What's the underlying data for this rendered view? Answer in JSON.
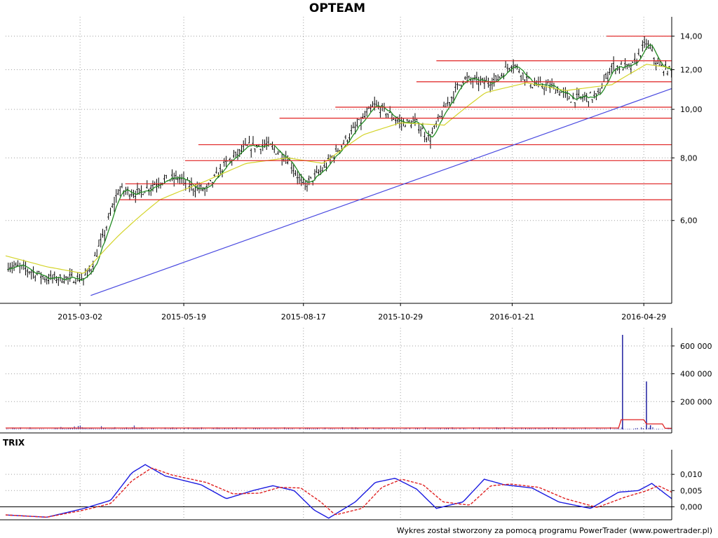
{
  "title": "OPTEAM",
  "trix_label": "TRIX",
  "credit": "Wykres został stworzony za pomocą programu PowerTrader (www.powertrader.pl)",
  "colors": {
    "candle": "#000000",
    "sma_short": "#228b22",
    "sma_long": "#d4d42a",
    "resistance": "#e02020",
    "trendline": "#4848e0",
    "volume_bar": "#2020a0",
    "volume_avg": "#e02020",
    "trix": "#1a1ae0",
    "trix_signal": "#e02020",
    "grid": "#a0a0a0"
  },
  "chart_data": [
    {
      "type": "line",
      "panel": "price",
      "y_scale": "log",
      "ylim": [
        4.1,
        15.3
      ],
      "x_range": [
        "2015-01-05",
        "2016-05-20"
      ],
      "x_tick_labels": [
        "2015-03-02",
        "2015-05-19",
        "2015-08-17",
        "2015-10-29",
        "2016-01-21",
        "2016-04-29"
      ],
      "y_tick_labels": [
        "6,00",
        "8,00",
        "10,00",
        "12,00",
        "14,00"
      ],
      "y_ticks": [
        6,
        8,
        10,
        12,
        14
      ],
      "grid": true,
      "series": [
        {
          "kind": "close",
          "x": [
            "2015-01-05",
            "2015-01-20",
            "2015-02-05",
            "2015-02-20",
            "2015-03-05",
            "2015-03-10",
            "2015-03-20",
            "2015-03-31",
            "2015-04-15",
            "2015-05-01",
            "2015-05-15",
            "2015-05-25",
            "2015-06-05",
            "2015-06-20",
            "2015-07-05",
            "2015-07-20",
            "2015-08-05",
            "2015-08-17",
            "2015-09-01",
            "2015-09-15",
            "2015-09-30",
            "2015-10-10",
            "2015-10-20",
            "2015-10-29",
            "2015-11-10",
            "2015-11-20",
            "2015-12-01",
            "2015-12-15",
            "2015-12-31",
            "2016-01-10",
            "2016-01-21",
            "2016-02-05",
            "2016-02-20",
            "2016-03-05",
            "2016-03-25",
            "2016-04-05",
            "2016-04-20",
            "2016-05-01",
            "2016-05-10",
            "2016-05-20"
          ],
          "y": [
            4.9,
            4.8,
            4.6,
            4.6,
            4.6,
            4.8,
            5.6,
            6.9,
            6.8,
            7.2,
            7.3,
            7.0,
            6.9,
            7.8,
            8.4,
            8.5,
            8.0,
            7.0,
            7.6,
            8.5,
            9.5,
            10.2,
            9.8,
            9.4,
            9.4,
            8.7,
            10.0,
            11.5,
            11.3,
            11.5,
            12.4,
            11.2,
            11.1,
            10.5,
            10.6,
            12.2,
            12.1,
            13.6,
            12.2,
            11.9
          ]
        },
        {
          "kind": "sma_long",
          "x": [
            "2015-01-05",
            "2015-02-05",
            "2015-03-05",
            "2015-03-31",
            "2015-05-01",
            "2015-06-05",
            "2015-07-05",
            "2015-08-05",
            "2015-09-01",
            "2015-10-01",
            "2015-10-29",
            "2015-12-01",
            "2016-01-01",
            "2016-02-01",
            "2016-03-01",
            "2016-04-05",
            "2016-05-01",
            "2016-05-20"
          ],
          "y": [
            5.1,
            4.85,
            4.7,
            5.6,
            6.6,
            7.2,
            7.8,
            8.0,
            7.8,
            8.9,
            9.4,
            9.3,
            10.8,
            11.3,
            10.9,
            11.2,
            12.3,
            12.1
          ]
        },
        {
          "kind": "resistance",
          "levels": [
            {
              "value": 6.6,
              "from": "2015-04-01"
            },
            {
              "value": 7.1,
              "from": "2015-04-05"
            },
            {
              "value": 7.9,
              "from": "2015-05-20"
            },
            {
              "value": 8.5,
              "from": "2015-05-30"
            },
            {
              "value": 9.6,
              "from": "2015-07-30"
            },
            {
              "value": 10.1,
              "from": "2015-09-10"
            },
            {
              "value": 11.35,
              "from": "2015-11-10"
            },
            {
              "value": 12.5,
              "from": "2015-11-25"
            },
            {
              "value": 14.0,
              "from": "2016-04-01"
            }
          ]
        },
        {
          "kind": "trendline",
          "x": [
            "2015-03-10",
            "2016-05-20"
          ],
          "y": [
            4.25,
            11.0
          ]
        }
      ]
    },
    {
      "type": "bar",
      "panel": "volume",
      "ylim": [
        0,
        690000
      ],
      "y_tick_labels": [
        "200 000",
        "400 000",
        "600 000"
      ],
      "y_ticks": [
        200000,
        400000,
        600000
      ],
      "grid": true,
      "spikes": [
        {
          "x": "2016-04-13",
          "value": 680000
        },
        {
          "x": "2016-05-01",
          "value": 345000
        },
        {
          "x": "2016-05-04",
          "value": 30000
        }
      ],
      "average": [
        {
          "x": "2015-01-05",
          "value": 10000
        },
        {
          "x": "2016-04-10",
          "value": 10000
        },
        {
          "x": "2016-04-12",
          "value": 70000
        },
        {
          "x": "2016-04-29",
          "value": 70000
        },
        {
          "x": "2016-05-01",
          "value": 40000
        },
        {
          "x": "2016-05-13",
          "value": 40000
        },
        {
          "x": "2016-05-15",
          "value": 8000
        },
        {
          "x": "2016-05-20",
          "value": 8000
        }
      ]
    },
    {
      "type": "line",
      "panel": "trix",
      "title": "TRIX",
      "ylim": [
        -0.004,
        0.0137
      ],
      "y_tick_labels": [
        "0,000",
        "0,005",
        "0,010"
      ],
      "y_ticks": [
        0,
        0.005,
        0.01
      ],
      "grid": true,
      "series": [
        {
          "kind": "trix",
          "x": [
            "2015-01-05",
            "2015-02-05",
            "2015-03-05",
            "2015-03-25",
            "2015-04-10",
            "2015-04-20",
            "2015-05-05",
            "2015-06-01",
            "2015-06-20",
            "2015-07-10",
            "2015-07-25",
            "2015-08-10",
            "2015-08-25",
            "2015-09-05",
            "2015-09-25",
            "2015-10-10",
            "2015-10-25",
            "2015-11-10",
            "2015-11-25",
            "2015-12-15",
            "2015-12-31",
            "2016-01-15",
            "2016-02-05",
            "2016-02-25",
            "2016-03-20",
            "2016-04-10",
            "2016-04-25",
            "2016-05-05",
            "2016-05-20"
          ],
          "y": [
            -0.0025,
            -0.0032,
            -0.0005,
            0.002,
            0.0105,
            0.013,
            0.0095,
            0.0068,
            0.0025,
            0.005,
            0.0065,
            0.005,
            -0.001,
            -0.0035,
            0.0015,
            0.0075,
            0.0088,
            0.0055,
            -0.0005,
            0.0015,
            0.0085,
            0.0068,
            0.0058,
            0.0015,
            -0.0005,
            0.0045,
            0.005,
            0.0072,
            0.0025
          ]
        },
        {
          "kind": "trix_signal",
          "x": [
            "2015-01-05",
            "2015-02-05",
            "2015-03-05",
            "2015-03-25",
            "2015-04-10",
            "2015-04-25",
            "2015-05-10",
            "2015-06-05",
            "2015-06-25",
            "2015-07-15",
            "2015-07-30",
            "2015-08-15",
            "2015-08-30",
            "2015-09-10",
            "2015-09-30",
            "2015-10-15",
            "2015-10-30",
            "2015-11-15",
            "2015-11-30",
            "2015-12-20",
            "2016-01-05",
            "2016-01-20",
            "2016-02-10",
            "2016-03-01",
            "2016-03-25",
            "2016-04-15",
            "2016-04-30",
            "2016-05-10",
            "2016-05-20"
          ],
          "y": [
            -0.0025,
            -0.0032,
            -0.001,
            0.001,
            0.008,
            0.012,
            0.0098,
            0.0075,
            0.004,
            0.0042,
            0.006,
            0.0058,
            0.0015,
            -0.0025,
            -0.0005,
            0.006,
            0.0085,
            0.0068,
            0.0015,
            0.0005,
            0.0065,
            0.007,
            0.006,
            0.0025,
            -0.0002,
            0.003,
            0.0048,
            0.0065,
            0.0045
          ]
        }
      ]
    }
  ]
}
